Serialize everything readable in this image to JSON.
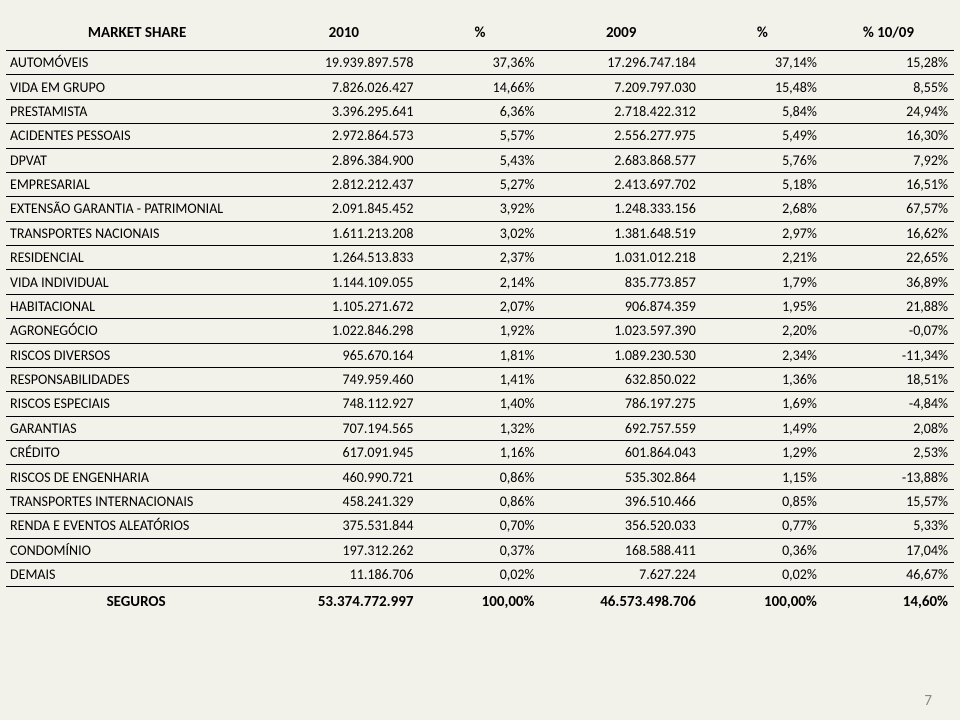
{
  "title": "MARKET SHARE",
  "page_number": "7",
  "background_color": "#f2f2ea",
  "border_color": "#000000",
  "text_color": "#000000",
  "pagenum_color": "#888888",
  "font_family": "Calibri",
  "fontsize_header_pt": 15,
  "fontsize_body_pt": 14,
  "fontsize_total_pt": 15,
  "columns": [
    "MARKET SHARE",
    "2010",
    "%",
    "2009",
    "%",
    "% 10/09"
  ],
  "column_align": [
    "left",
    "right",
    "right",
    "right",
    "right",
    "right"
  ],
  "rows": [
    {
      "name": "AUTOMÓVEIS",
      "v2010": "19.939.897.578",
      "p2010": "37,36%",
      "v2009": "17.296.747.184",
      "p2009": "37,14%",
      "delta": "15,28%"
    },
    {
      "name": "VIDA EM GRUPO",
      "v2010": "7.826.026.427",
      "p2010": "14,66%",
      "v2009": "7.209.797.030",
      "p2009": "15,48%",
      "delta": "8,55%"
    },
    {
      "name": "PRESTAMISTA",
      "v2010": "3.396.295.641",
      "p2010": "6,36%",
      "v2009": "2.718.422.312",
      "p2009": "5,84%",
      "delta": "24,94%"
    },
    {
      "name": "ACIDENTES PESSOAIS",
      "v2010": "2.972.864.573",
      "p2010": "5,57%",
      "v2009": "2.556.277.975",
      "p2009": "5,49%",
      "delta": "16,30%"
    },
    {
      "name": "DPVAT",
      "v2010": "2.896.384.900",
      "p2010": "5,43%",
      "v2009": "2.683.868.577",
      "p2009": "5,76%",
      "delta": "7,92%"
    },
    {
      "name": "EMPRESARIAL",
      "v2010": "2.812.212.437",
      "p2010": "5,27%",
      "v2009": "2.413.697.702",
      "p2009": "5,18%",
      "delta": "16,51%"
    },
    {
      "name": "EXTENSÃO GARANTIA - PATRIMONIAL",
      "v2010": "2.091.845.452",
      "p2010": "3,92%",
      "v2009": "1.248.333.156",
      "p2009": "2,68%",
      "delta": "67,57%"
    },
    {
      "name": "TRANSPORTES NACIONAIS",
      "v2010": "1.611.213.208",
      "p2010": "3,02%",
      "v2009": "1.381.648.519",
      "p2009": "2,97%",
      "delta": "16,62%"
    },
    {
      "name": "RESIDENCIAL",
      "v2010": "1.264.513.833",
      "p2010": "2,37%",
      "v2009": "1.031.012.218",
      "p2009": "2,21%",
      "delta": "22,65%"
    },
    {
      "name": "VIDA INDIVIDUAL",
      "v2010": "1.144.109.055",
      "p2010": "2,14%",
      "v2009": "835.773.857",
      "p2009": "1,79%",
      "delta": "36,89%"
    },
    {
      "name": "HABITACIONAL",
      "v2010": "1.105.271.672",
      "p2010": "2,07%",
      "v2009": "906.874.359",
      "p2009": "1,95%",
      "delta": "21,88%"
    },
    {
      "name": "AGRONEGÓCIO",
      "v2010": "1.022.846.298",
      "p2010": "1,92%",
      "v2009": "1.023.597.390",
      "p2009": "2,20%",
      "delta": "-0,07%"
    },
    {
      "name": "RISCOS DIVERSOS",
      "v2010": "965.670.164",
      "p2010": "1,81%",
      "v2009": "1.089.230.530",
      "p2009": "2,34%",
      "delta": "-11,34%"
    },
    {
      "name": "RESPONSABILIDADES",
      "v2010": "749.959.460",
      "p2010": "1,41%",
      "v2009": "632.850.022",
      "p2009": "1,36%",
      "delta": "18,51%"
    },
    {
      "name": "RISCOS ESPECIAIS",
      "v2010": "748.112.927",
      "p2010": "1,40%",
      "v2009": "786.197.275",
      "p2009": "1,69%",
      "delta": "-4,84%"
    },
    {
      "name": "GARANTIAS",
      "v2010": "707.194.565",
      "p2010": "1,32%",
      "v2009": "692.757.559",
      "p2009": "1,49%",
      "delta": "2,08%"
    },
    {
      "name": "CRÉDITO",
      "v2010": "617.091.945",
      "p2010": "1,16%",
      "v2009": "601.864.043",
      "p2009": "1,29%",
      "delta": "2,53%"
    },
    {
      "name": "RISCOS DE ENGENHARIA",
      "v2010": "460.990.721",
      "p2010": "0,86%",
      "v2009": "535.302.864",
      "p2009": "1,15%",
      "delta": "-13,88%"
    },
    {
      "name": "TRANSPORTES INTERNACIONAIS",
      "v2010": "458.241.329",
      "p2010": "0,86%",
      "v2009": "396.510.466",
      "p2009": "0,85%",
      "delta": "15,57%"
    },
    {
      "name": "RENDA E EVENTOS ALEATÓRIOS",
      "v2010": "375.531.844",
      "p2010": "0,70%",
      "v2009": "356.520.033",
      "p2009": "0,77%",
      "delta": "5,33%"
    },
    {
      "name": "CONDOMÍNIO",
      "v2010": "197.312.262",
      "p2010": "0,37%",
      "v2009": "168.588.411",
      "p2009": "0,36%",
      "delta": "17,04%"
    },
    {
      "name": "DEMAIS",
      "v2010": "11.186.706",
      "p2010": "0,02%",
      "v2009": "7.627.224",
      "p2009": "0,02%",
      "delta": "46,67%"
    }
  ],
  "total": {
    "name": "SEGUROS",
    "v2010": "53.374.772.997",
    "p2010": "100,00%",
    "v2009": "46.573.498.706",
    "p2009": "100,00%",
    "delta": "14,60%"
  }
}
